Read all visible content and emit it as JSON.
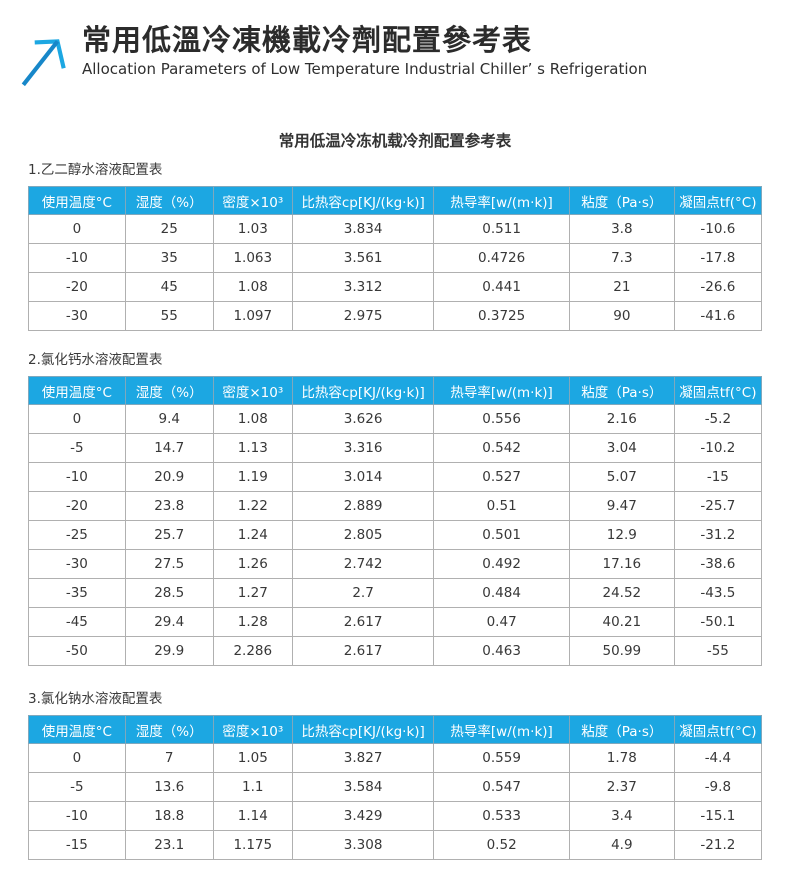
{
  "colors": {
    "accent_blue": "#1ca7e2",
    "header_text": "#ffffff",
    "body_text": "#333333",
    "cell_border": "#b0b0b0"
  },
  "brand": {
    "icon": "arrow-up-right-icon",
    "title_zh": "常用低溫冷凍機載冷劑配置參考表",
    "subtitle_en": "Allocation Parameters of Low Temperature Industrial Chiller’ s Refrigeration"
  },
  "body_title": "常用低温冷冻机载冷剂配置参考表",
  "column_headers": [
    "使用温度°C",
    "湿度（%）",
    "密度×10³",
    "比热容cp[KJ/(kg·k)]",
    "热导率[w/(m·k)]",
    "粘度（Pa·s）",
    "凝固点tf(°C)"
  ],
  "tables": [
    {
      "section_title": "1.乙二醇水溶液配置表",
      "rows": [
        [
          "0",
          "25",
          "1.03",
          "3.834",
          "0.511",
          "3.8",
          "-10.6"
        ],
        [
          "-10",
          "35",
          "1.063",
          "3.561",
          "0.4726",
          "7.3",
          "-17.8"
        ],
        [
          "-20",
          "45",
          "1.08",
          "3.312",
          "0.441",
          "21",
          "-26.6"
        ],
        [
          "-30",
          "55",
          "1.097",
          "2.975",
          "0.3725",
          "90",
          "-41.6"
        ]
      ]
    },
    {
      "section_title": "2.氯化钙水溶液配置表",
      "rows": [
        [
          "0",
          "9.4",
          "1.08",
          "3.626",
          "0.556",
          "2.16",
          "-5.2"
        ],
        [
          "-5",
          "14.7",
          "1.13",
          "3.316",
          "0.542",
          "3.04",
          "-10.2"
        ],
        [
          "-10",
          "20.9",
          "1.19",
          "3.014",
          "0.527",
          "5.07",
          "-15"
        ],
        [
          "-20",
          "23.8",
          "1.22",
          "2.889",
          "0.51",
          "9.47",
          "-25.7"
        ],
        [
          "-25",
          "25.7",
          "1.24",
          "2.805",
          "0.501",
          "12.9",
          "-31.2"
        ],
        [
          "-30",
          "27.5",
          "1.26",
          "2.742",
          "0.492",
          "17.16",
          "-38.6"
        ],
        [
          "-35",
          "28.5",
          "1.27",
          "2.7",
          "0.484",
          "24.52",
          "-43.5"
        ],
        [
          "-45",
          "29.4",
          "1.28",
          "2.617",
          "0.47",
          "40.21",
          "-50.1"
        ],
        [
          "-50",
          "29.9",
          "2.286",
          "2.617",
          "0.463",
          "50.99",
          "-55"
        ]
      ]
    },
    {
      "section_title": "3.氯化钠水溶液配置表",
      "rows": [
        [
          "0",
          "7",
          "1.05",
          "3.827",
          "0.559",
          "1.78",
          "-4.4"
        ],
        [
          "-5",
          "13.6",
          "1.1",
          "3.584",
          "0.547",
          "2.37",
          "-9.8"
        ],
        [
          "-10",
          "18.8",
          "1.14",
          "3.429",
          "0.533",
          "3.4",
          "-15.1"
        ],
        [
          "-15",
          "23.1",
          "1.175",
          "3.308",
          "0.52",
          "4.9",
          "-21.2"
        ]
      ]
    }
  ]
}
